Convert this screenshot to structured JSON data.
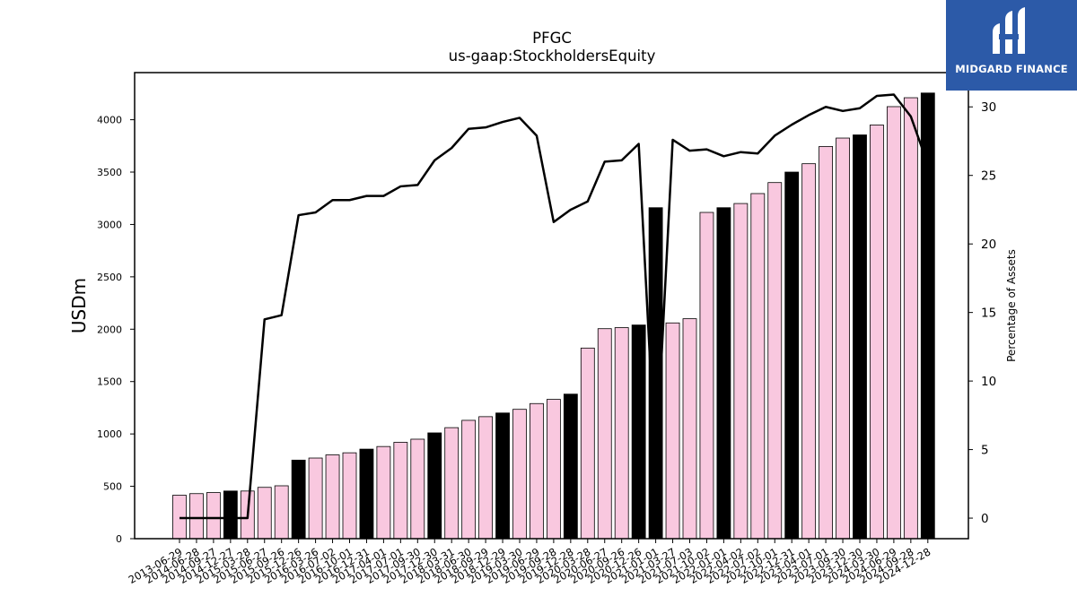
{
  "brand": {
    "name": "MIDGARD FINANCE",
    "color": "#2c5aa8"
  },
  "chart_data": {
    "type": "bar",
    "title": "PFGC",
    "subtitle": "us-gaap:StockholdersEquity",
    "ylabel": "USDm",
    "y2label": "Percentage of Assets",
    "ylim": [
      0,
      4450
    ],
    "y2lim": [
      -1.5,
      32.5
    ],
    "yticks": [
      0,
      500,
      1000,
      1500,
      2000,
      2500,
      3000,
      3500,
      4000
    ],
    "y2ticks": [
      0,
      5,
      10,
      15,
      20,
      25,
      30
    ],
    "colors": {
      "bar": "#f9c8df",
      "bar_highlight": "#000000",
      "line": "#000000"
    },
    "categories": [
      "2013-06-29",
      "2014-06-28",
      "2014-09-27",
      "2014-12-27",
      "2015-03-28",
      "2015-06-27",
      "2015-09-26",
      "2015-12-26",
      "2016-03-26",
      "2016-07-02",
      "2016-10-01",
      "2016-12-31",
      "2017-04-01",
      "2017-07-01",
      "2017-09-30",
      "2017-12-30",
      "2018-03-31",
      "2018-06-30",
      "2018-09-29",
      "2018-12-29",
      "2019-03-30",
      "2019-06-29",
      "2019-09-28",
      "2019-12-28",
      "2020-03-28",
      "2020-06-27",
      "2020-09-26",
      "2020-12-26",
      "2021-01-01",
      "2021-03-27",
      "2021-07-03",
      "2021-10-02",
      "2022-01-01",
      "2022-04-02",
      "2022-07-02",
      "2022-10-01",
      "2022-12-31",
      "2023-04-01",
      "2023-07-01",
      "2023-09-30",
      "2023-12-30",
      "2024-03-30",
      "2024-06-29",
      "2024-09-28",
      "2024-12-28"
    ],
    "series": [
      {
        "type": "bar",
        "values": [
          415,
          430,
          440,
          455,
          455,
          490,
          505,
          750,
          770,
          800,
          820,
          855,
          880,
          920,
          950,
          1010,
          1060,
          1130,
          1165,
          1200,
          1235,
          1290,
          1330,
          1380,
          1820,
          2005,
          2015,
          2040,
          3160,
          2060,
          2100,
          3115,
          3160,
          3200,
          3295,
          3400,
          3500,
          3580,
          3745,
          3825,
          3855,
          3950,
          4125,
          4210,
          4255
        ],
        "highlight": [
          false,
          false,
          false,
          true,
          false,
          false,
          false,
          true,
          false,
          false,
          false,
          true,
          false,
          false,
          false,
          true,
          false,
          false,
          false,
          true,
          false,
          false,
          false,
          true,
          false,
          false,
          false,
          true,
          true,
          false,
          false,
          false,
          true,
          false,
          false,
          false,
          true,
          false,
          false,
          false,
          true,
          false,
          false,
          false,
          true
        ]
      },
      {
        "type": "line",
        "values": [
          0,
          0,
          0,
          0,
          0,
          14.5,
          14.8,
          22.1,
          22.3,
          23.2,
          23.2,
          23.5,
          23.5,
          24.2,
          24.3,
          26.1,
          27.0,
          28.4,
          28.5,
          28.9,
          29.2,
          27.9,
          21.6,
          22.5,
          23.1,
          26.0,
          26.1,
          27.3,
          3.5,
          27.6,
          26.8,
          26.9,
          26.4,
          26.7,
          26.6,
          27.9,
          28.7,
          29.4,
          30.0,
          29.7,
          29.9,
          30.8,
          30.9,
          29.3,
          25.8
        ]
      }
    ]
  }
}
